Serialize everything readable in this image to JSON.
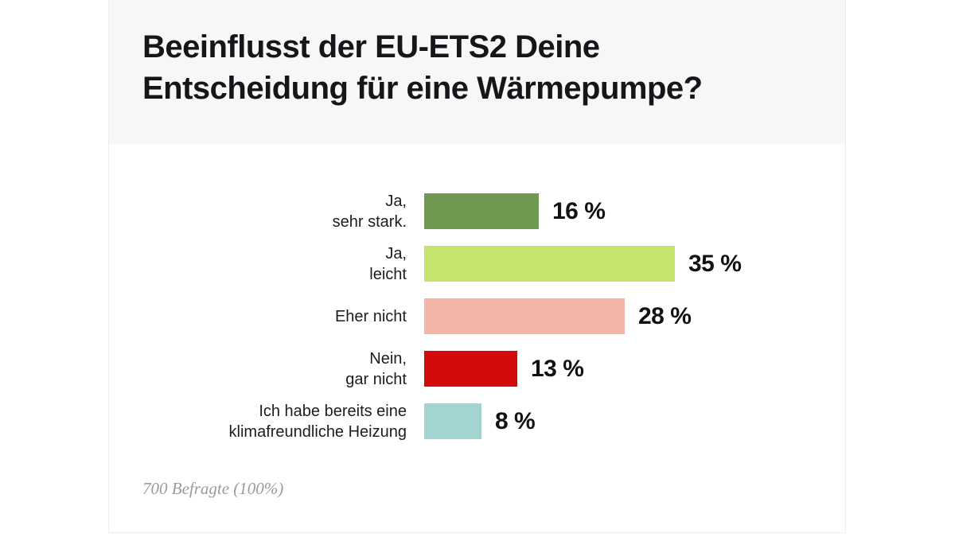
{
  "header": {
    "title": "Beeinflusst der EU-ETS2 Deine\nEntscheidung für eine Wärmepumpe?"
  },
  "footer": {
    "note": "700 Befragte (100%)"
  },
  "colors": {
    "header_background": "#f7f7f7",
    "card_border": "#ededed",
    "title_text": "#15151a",
    "label_text": "#1d1d1d",
    "footnote_text": "#9b9b9b"
  },
  "chart_data": {
    "type": "bar",
    "orientation": "horizontal",
    "title": "Beeinflusst der EU-ETS2 Deine Entscheidung für eine Wärmepumpe?",
    "categories": [
      "Ja,\nsehr stark.",
      "Ja,\nleicht",
      "Eher nicht",
      "Nein,\ngar nicht",
      "Ich habe bereits eine\nklimafreundliche Heizung"
    ],
    "values": [
      16,
      35,
      28,
      13,
      8
    ],
    "value_labels": [
      "16 %",
      "35 %",
      "28 %",
      "13 %",
      "8 %"
    ],
    "bar_colors": [
      "#6f9950",
      "#c5e46b",
      "#f3b6a6",
      "#d20a0a",
      "#a2d4d1"
    ],
    "unit": "%",
    "xlabel": "",
    "ylabel": "",
    "xlim": [
      0,
      100
    ],
    "grid": false,
    "legend": false,
    "footnote": "700 Befragte (100%)"
  }
}
